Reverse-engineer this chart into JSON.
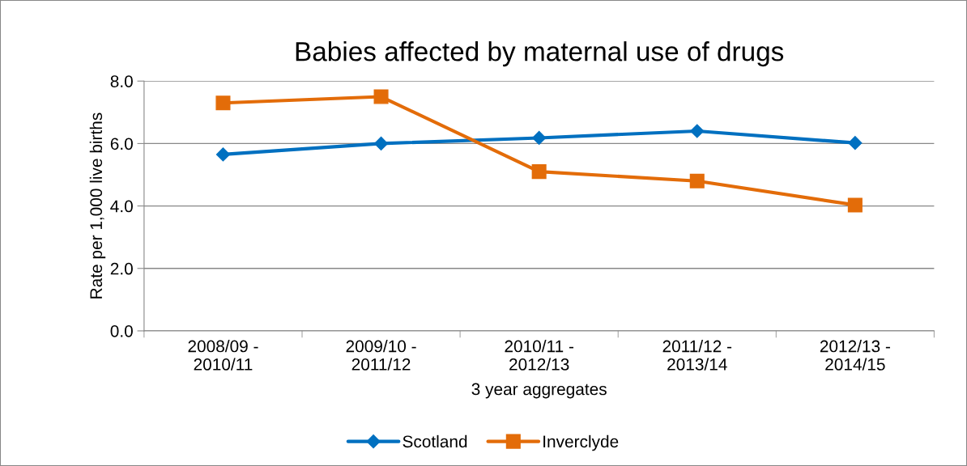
{
  "chart_data": {
    "type": "line",
    "title": "Babies affected by maternal use of drugs",
    "xlabel": "3 year aggregates",
    "ylabel": "Rate per 1,000 live births",
    "categories": [
      "2008/09 -\n2010/11",
      "2009/10 -\n2011/12",
      "2010/11 -\n2012/13",
      "2011/12 -\n2013/14",
      "2012/13 -\n2014/15"
    ],
    "series": [
      {
        "name": "Scotland",
        "color": "#0070c0",
        "marker": "diamond",
        "values": [
          5.65,
          6.0,
          6.18,
          6.4,
          6.02
        ]
      },
      {
        "name": "Inverclyde",
        "color": "#e36c09",
        "marker": "square",
        "values": [
          7.3,
          7.5,
          5.1,
          4.8,
          4.03
        ]
      }
    ],
    "ylim": [
      0,
      8
    ],
    "yticks": [
      {
        "value": 0,
        "label": "0.0"
      },
      {
        "value": 2,
        "label": "2.0"
      },
      {
        "value": 4,
        "label": "4.0"
      },
      {
        "value": 6,
        "label": "6.0"
      },
      {
        "value": 8,
        "label": "8.0"
      }
    ],
    "grid": "y",
    "legend": "bottom"
  }
}
